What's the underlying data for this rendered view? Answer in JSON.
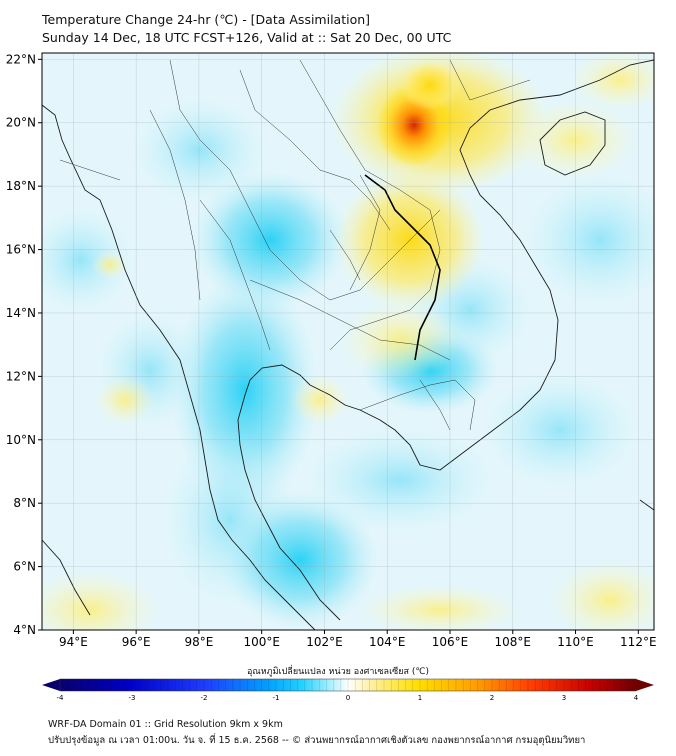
{
  "header": {
    "title": "Temperature Change 24-hr (℃) - [Data Assimilation]",
    "subtitle": "Sunday 14 Dec, 18 UTC FCST+126, Valid at :: Sat 20 Dec, 00 UTC"
  },
  "map": {
    "lon_range": [
      93,
      112.5
    ],
    "lat_range": [
      4,
      22.2
    ],
    "lat_ticks": [
      "22°N",
      "20°N",
      "18°N",
      "16°N",
      "14°N",
      "12°N",
      "10°N",
      "8°N",
      "6°N",
      "4°N"
    ],
    "lat_tick_values": [
      22,
      20,
      18,
      16,
      14,
      12,
      10,
      8,
      6,
      4
    ],
    "lon_ticks": [
      "94°E",
      "96°E",
      "98°E",
      "100°E",
      "102°E",
      "104°E",
      "106°E",
      "108°E",
      "110°E",
      "112°E"
    ],
    "lon_tick_values": [
      94,
      96,
      98,
      100,
      102,
      104,
      106,
      108,
      110,
      112
    ],
    "features": {
      "warm_max_region": "northern Laos / Vietnam border near 105°E 20°N",
      "cool_regions": "Myanmar and peninsular Thailand"
    }
  },
  "colorbar": {
    "title": "อุณหภูมิเปลี่ยนแปลง หน่วย องศาเซลเซียส (℃)",
    "ticks": [
      "-4",
      "-3",
      "-2",
      "-1",
      "0",
      "1",
      "2",
      "3",
      "4"
    ],
    "range": [
      -4,
      4
    ],
    "colors": [
      "#08006e",
      "#0000c8",
      "#1e3cff",
      "#00a0ff",
      "#22d2ff",
      "#aaf0ff",
      "#ffffff",
      "#fff0a0",
      "#ffe000",
      "#ffa000",
      "#ff3c00",
      "#c80000",
      "#6e0000"
    ]
  },
  "footer": {
    "line1": "WRF-DA Domain 01 :: Grid Resolution 9km x 9km",
    "line2": "ปรับปรุงข้อมูล ณ เวลา 01:00น. วัน จ. ที่ 15 ธ.ค. 2568 -- © ส่วนพยากรณ์อากาศเชิงตัวเลข กองพยากรณ์อากาศ กรมอุตุนิยมวิทยา"
  }
}
